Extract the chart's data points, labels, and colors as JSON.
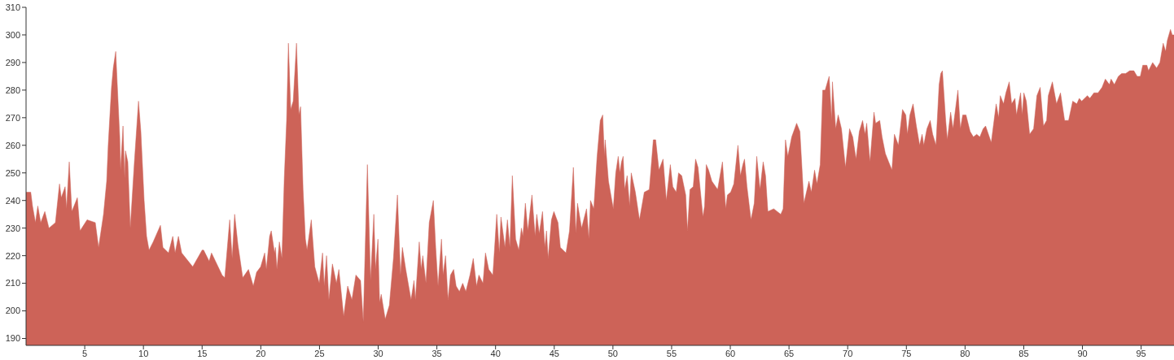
{
  "chart_data": {
    "type": "area",
    "xlim": [
      0,
      97.8
    ],
    "xticks": [
      5,
      10,
      15,
      20,
      25,
      30,
      35,
      40,
      45,
      50,
      55,
      60,
      65,
      70,
      75,
      80,
      85,
      90,
      95
    ],
    "ylim": [
      187.5,
      310
    ],
    "yticks": [
      190,
      200,
      210,
      220,
      230,
      240,
      250,
      260,
      270,
      280,
      290,
      300,
      310
    ],
    "grid": false,
    "legend": false,
    "x": [
      0,
      0.4,
      0.55,
      0.8,
      1.0,
      1.25,
      1.6,
      1.95,
      2.5,
      2.85,
      3.0,
      3.33,
      3.45,
      3.68,
      3.9,
      4.37,
      4.6,
      5.2,
      5.9,
      6.18,
      6.6,
      6.87,
      7.0,
      7.28,
      7.43,
      7.64,
      7.98,
      8.05,
      8.26,
      8.4,
      8.47,
      8.67,
      8.88,
      9.23,
      9.58,
      9.78,
      10.06,
      10.27,
      10.48,
      10.83,
      11.45,
      11.66,
      12.14,
      12.5,
      12.7,
      12.98,
      13.26,
      14.2,
      15.0,
      15.13,
      15.6,
      15.8,
      16.7,
      16.93,
      17.35,
      17.56,
      17.77,
      18.05,
      18.46,
      18.95,
      19.36,
      19.64,
      19.99,
      20.33,
      20.47,
      20.75,
      20.89,
      21.17,
      21.25,
      21.37,
      21.58,
      21.8,
      22.0,
      22.2,
      22.35,
      22.55,
      22.76,
      23.04,
      23.25,
      23.39,
      23.6,
      23.8,
      23.94,
      24.3,
      24.6,
      24.98,
      25.26,
      25.4,
      25.6,
      25.8,
      26.1,
      26.44,
      26.65,
      27.06,
      27.4,
      27.76,
      28.1,
      28.5,
      28.73,
      29.08,
      29.35,
      29.63,
      29.77,
      29.98,
      30.12,
      30.26,
      30.6,
      30.95,
      31.3,
      31.64,
      31.9,
      32.06,
      32.35,
      32.8,
      33.05,
      33.17,
      33.5,
      33.66,
      33.8,
      34.07,
      34.35,
      34.7,
      34.9,
      35.1,
      35.39,
      35.53,
      35.74,
      35.95,
      36.16,
      36.43,
      36.64,
      36.92,
      37.2,
      37.47,
      37.82,
      38.1,
      38.38,
      38.58,
      38.93,
      39.14,
      39.42,
      39.77,
      40.1,
      40.32,
      40.46,
      40.8,
      41.01,
      41.22,
      41.43,
      41.71,
      41.98,
      42.2,
      42.33,
      42.54,
      42.75,
      43.1,
      43.37,
      43.51,
      43.72,
      44.0,
      44.2,
      44.34,
      44.48,
      44.76,
      44.97,
      45.32,
      45.52,
      46.0,
      46.3,
      46.63,
      46.84,
      46.98,
      47.33,
      47.75,
      47.95,
      48.09,
      48.37,
      48.65,
      48.92,
      49.13,
      49.27,
      49.34,
      49.62,
      50.03,
      50.24,
      50.45,
      50.59,
      50.73,
      50.87,
      51.0,
      51.21,
      51.42,
      51.56,
      51.91,
      52.26,
      52.67,
      53.1,
      53.44,
      53.64,
      53.92,
      54.27,
      54.55,
      54.89,
      55.1,
      55.39,
      55.59,
      55.86,
      56.2,
      56.35,
      56.56,
      56.84,
      57.04,
      57.25,
      57.67,
      57.81,
      57.95,
      58.15,
      58.43,
      58.92,
      59.33,
      59.61,
      59.75,
      60.03,
      60.3,
      60.65,
      60.86,
      61.07,
      61.21,
      61.42,
      61.76,
      62.04,
      62.25,
      62.53,
      62.8,
      63.0,
      63.2,
      63.7,
      64.3,
      64.5,
      64.7,
      64.9,
      65.23,
      65.65,
      65.93,
      66.27,
      66.7,
      66.9,
      67.18,
      67.38,
      67.66,
      67.87,
      68.08,
      68.42,
      68.63,
      68.7,
      68.98,
      69.19,
      69.47,
      69.81,
      70.16,
      70.43,
      70.71,
      70.99,
      71.27,
      71.48,
      71.62,
      71.9,
      72.24,
      72.38,
      72.73,
      72.93,
      73.21,
      73.49,
      73.77,
      73.98,
      74.32,
      74.67,
      74.95,
      75.09,
      75.3,
      75.57,
      75.85,
      76.13,
      76.34,
      76.48,
      76.75,
      77.03,
      77.24,
      77.52,
      77.79,
      77.93,
      78.07,
      78.35,
      78.49,
      78.77,
      78.97,
      79.39,
      79.6,
      79.8,
      80.08,
      80.43,
      80.71,
      80.99,
      81.26,
      81.54,
      81.75,
      82.23,
      82.65,
      82.86,
      83.0,
      83.28,
      83.48,
      83.76,
      83.97,
      84.25,
      84.38,
      84.73,
      84.87,
      85.01,
      85.22,
      85.5,
      85.84,
      86.12,
      86.4,
      86.68,
      86.95,
      87.09,
      87.44,
      87.79,
      88.13,
      88.48,
      88.82,
      89.17,
      89.52,
      89.73,
      89.94,
      90.42,
      90.63,
      90.98,
      91.33,
      91.67,
      91.95,
      92.3,
      92.44,
      92.72,
      93.06,
      93.34,
      93.68,
      94.03,
      94.38,
      94.66,
      94.93,
      95.14,
      95.49,
      95.63,
      95.98,
      96.32,
      96.6,
      96.88,
      97.09,
      97.23,
      97.5,
      97.65,
      97.8
    ],
    "series": [
      {
        "color": "#cd6358",
        "values": [
          243,
          243,
          238,
          232,
          238,
          232,
          236,
          230,
          232,
          246,
          241,
          245,
          237,
          254,
          236,
          241,
          229,
          233,
          232,
          223,
          235,
          247,
          260,
          281,
          288,
          294,
          263,
          251,
          267,
          248,
          258,
          254,
          230,
          254,
          276,
          265,
          240,
          227,
          222,
          225,
          231,
          223,
          221,
          227,
          221,
          227,
          221,
          216,
          222,
          222,
          218,
          221,
          213,
          212,
          233,
          219,
          235,
          224,
          212,
          215,
          209,
          214,
          216,
          221,
          215,
          227,
          229,
          221,
          223,
          215,
          225,
          219,
          248,
          269,
          297,
          273,
          276,
          297,
          271,
          274,
          244,
          226,
          222,
          233,
          216,
          210,
          221,
          209,
          220,
          204,
          217,
          210,
          215,
          198,
          209,
          204,
          213,
          211,
          196,
          253,
          211,
          235,
          215,
          226,
          203,
          206,
          197,
          202,
          219,
          242,
          213,
          223,
          215,
          204,
          211,
          204,
          225,
          215,
          220,
          210,
          232,
          240,
          223,
          209,
          226,
          213,
          220,
          204,
          213,
          215,
          209,
          207,
          210,
          207,
          213,
          219,
          209,
          213,
          210,
          221,
          215,
          213,
          235,
          221,
          234,
          223,
          233,
          223,
          249,
          226,
          222,
          230,
          227,
          239,
          229,
          242,
          227,
          235,
          228,
          236,
          223,
          229,
          219,
          233,
          236,
          232,
          223,
          221,
          229,
          252,
          228,
          239,
          230,
          237,
          226,
          240,
          237,
          256,
          269,
          271,
          256,
          262,
          247,
          237,
          250,
          256,
          250,
          254,
          256,
          244,
          249,
          238,
          250,
          243,
          233,
          243,
          244,
          262,
          262,
          251,
          255,
          240,
          253,
          245,
          243,
          250,
          249,
          242,
          229,
          244,
          245,
          255,
          252,
          234,
          238,
          253,
          251,
          247,
          244,
          254,
          237,
          242,
          243,
          246,
          260,
          249,
          253,
          255,
          245,
          233,
          239,
          256,
          244,
          254,
          249,
          236,
          237,
          235,
          237,
          262,
          256,
          263,
          268,
          265,
          239,
          247,
          243,
          251,
          246,
          253,
          280,
          280,
          285,
          269,
          283,
          266,
          271,
          266,
          252,
          266,
          263,
          255,
          265,
          269,
          264,
          268,
          254,
          272,
          268,
          269,
          263,
          257,
          254,
          251,
          264,
          260,
          273,
          271,
          264,
          271,
          275,
          267,
          260,
          264,
          260,
          266,
          269,
          264,
          260,
          282,
          286,
          287,
          269,
          262,
          272,
          266,
          280,
          266,
          271,
          271,
          265,
          263,
          264,
          263,
          266,
          267,
          261,
          275,
          270,
          278,
          275,
          279,
          283,
          275,
          277,
          271,
          279,
          271,
          279,
          276,
          264,
          266,
          278,
          281,
          267,
          269,
          278,
          283,
          275,
          279,
          269,
          269,
          276,
          275,
          277,
          276,
          278,
          277,
          279,
          279,
          281,
          284,
          282,
          284,
          282,
          285,
          286,
          286,
          287,
          287,
          285,
          285,
          289,
          289,
          287,
          290,
          288,
          290,
          297,
          294,
          298,
          302,
          300,
          300
        ]
      }
    ]
  }
}
